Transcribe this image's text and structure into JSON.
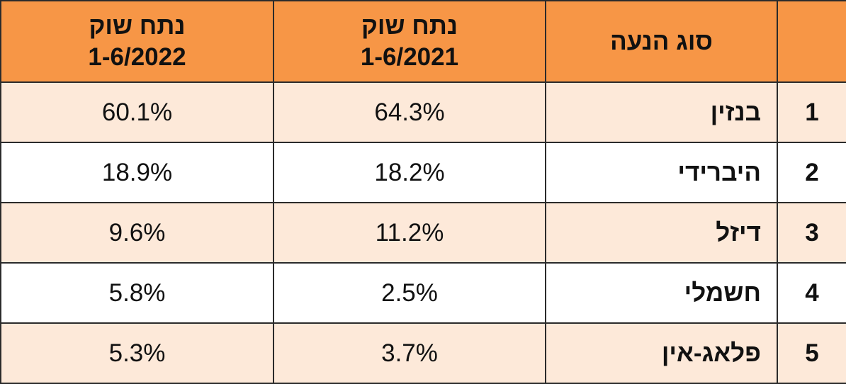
{
  "header": {
    "num": "",
    "type": "סוג הנעה",
    "col2021": {
      "line1": "נתח שוק",
      "line2": "1-6/2021"
    },
    "col2022": {
      "line1": "נתח שוק",
      "line2": "1-6/2022"
    }
  },
  "rows": [
    {
      "num": "1",
      "type": "בנזין",
      "v2021": "64.3%",
      "v2022": "60.1%"
    },
    {
      "num": "2",
      "type": "היברידי",
      "v2021": "18.2%",
      "v2022": "18.9%"
    },
    {
      "num": "3",
      "type": "דיזל",
      "v2021": "11.2%",
      "v2022": "9.6%"
    },
    {
      "num": "4",
      "type": "חשמלי",
      "v2021": "2.5%",
      "v2022": "5.8%"
    },
    {
      "num": "5",
      "type": "פלאג-אין",
      "v2021": "3.7%",
      "v2022": "5.3%"
    }
  ],
  "colors": {
    "header_bg": "#f79646",
    "row_shaded_bg": "#fde9d9",
    "row_plain_bg": "#ffffff",
    "border": "#2b2b2b"
  }
}
